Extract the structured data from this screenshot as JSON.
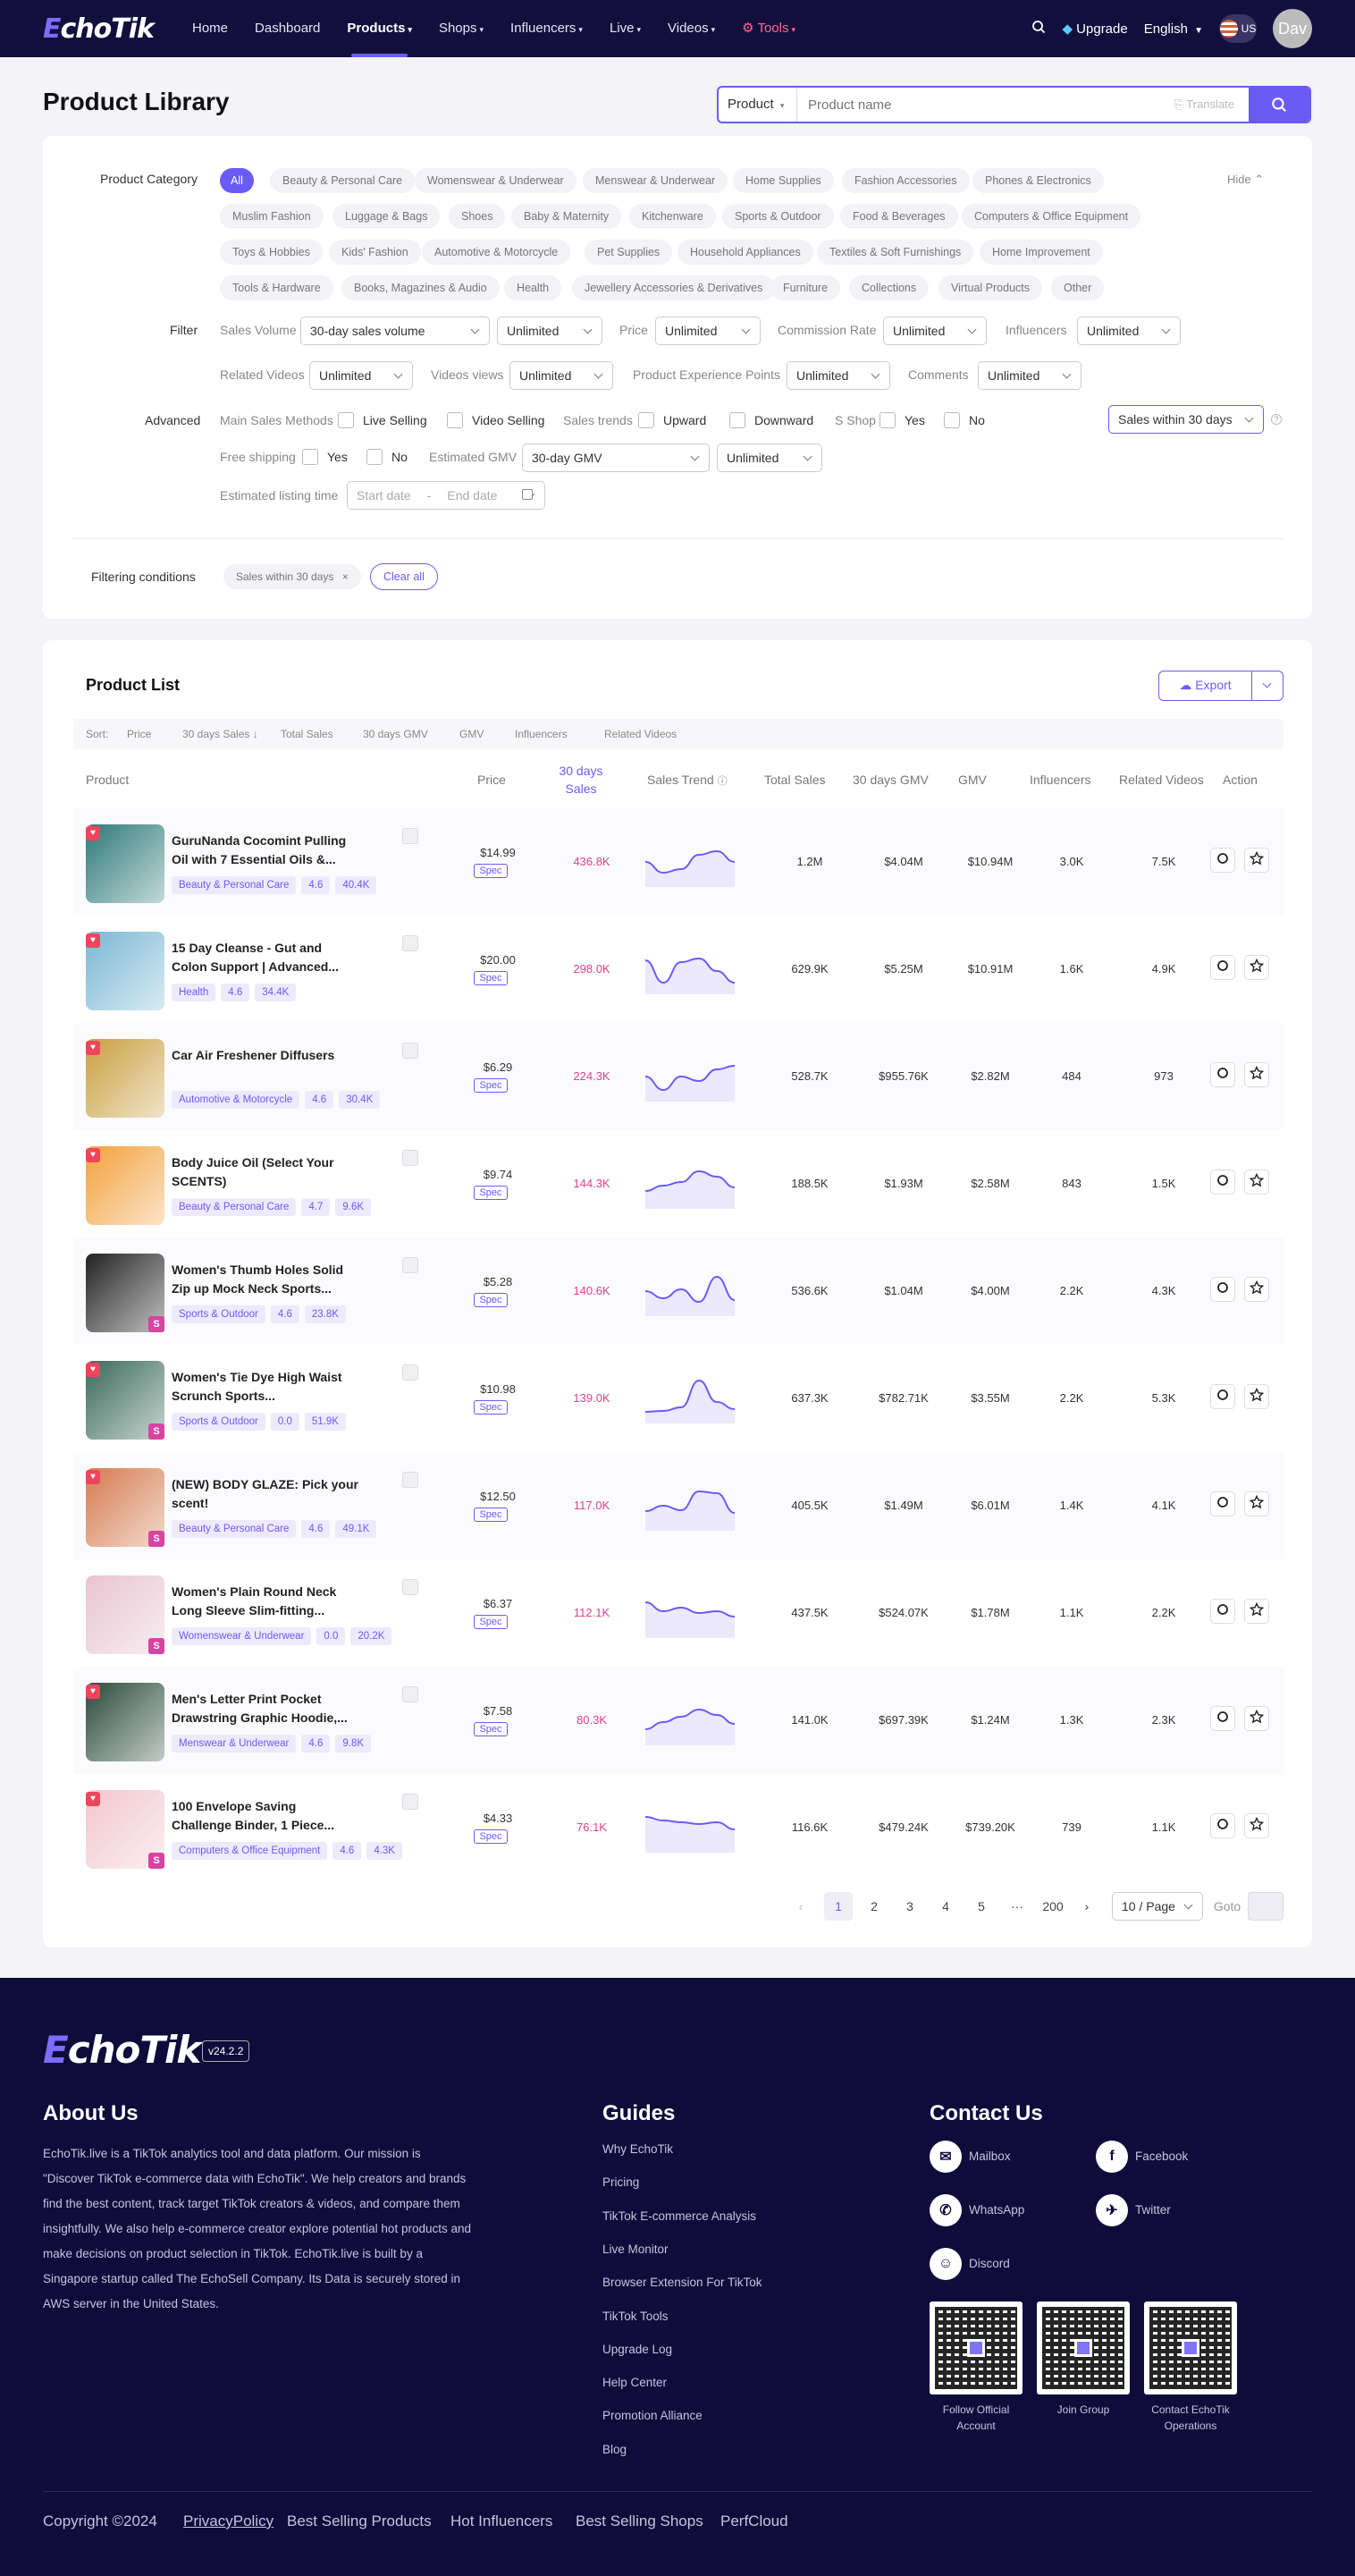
{
  "nav": {
    "items": [
      "Home",
      "Dashboard",
      "Products",
      "Shops",
      "Influencers",
      "Live",
      "Videos",
      "Tools"
    ],
    "upgrade": "Upgrade",
    "language": "English",
    "country": "US",
    "avatar": "Dav"
  },
  "page": {
    "title": "Product Library"
  },
  "search": {
    "type": "Product",
    "placeholder": "Product name",
    "translate": "Translate"
  },
  "category": {
    "label": "Product Category",
    "hide": "Hide",
    "items": [
      "All",
      "Beauty & Personal Care",
      "Womenswear & Underwear",
      "Menswear & Underwear",
      "Home Supplies",
      "Fashion Accessories",
      "Phones & Electronics",
      "Muslim Fashion",
      "Luggage & Bags",
      "Shoes",
      "Baby & Maternity",
      "Kitchenware",
      "Sports & Outdoor",
      "Food & Beverages",
      "Computers & Office Equipment",
      "Toys & Hobbies",
      "Kids' Fashion",
      "Automotive & Motorcycle",
      "Pet Supplies",
      "Household Appliances",
      "Textiles & Soft Furnishings",
      "Home Improvement",
      "Tools & Hardware",
      "Books, Magazines & Audio",
      "Health",
      "Jewellery Accessories & Derivatives",
      "Furniture",
      "Collections",
      "Virtual Products",
      "Other"
    ]
  },
  "filter": {
    "label": "Filter",
    "sales_volume": "Sales Volume",
    "sales_volume_val": "30-day sales volume",
    "unlimited": "Unlimited",
    "price": "Price",
    "commission": "Commission Rate",
    "influencers": "Influencers",
    "related_videos": "Related Videos",
    "video_views": "Videos views",
    "pep": "Product Experience Points",
    "comments": "Comments"
  },
  "advanced": {
    "label": "Advanced",
    "main_sales": "Main Sales Methods",
    "live": "Live Selling",
    "video": "Video Selling",
    "trends": "Sales trends",
    "upward": "Upward",
    "downward": "Downward",
    "sshop": "S Shop",
    "yes": "Yes",
    "no": "No",
    "sales_within": "Sales within 30 days",
    "free_shipping": "Free shipping",
    "est_gmv": "Estimated GMV",
    "gmv_val": "30-day GMV",
    "listing_time": "Estimated listing time",
    "start": "Start date",
    "dash": "-",
    "end": "End date"
  },
  "conditions": {
    "label": "Filtering conditions",
    "chip": "Sales within 30 days",
    "clear": "Clear all"
  },
  "list": {
    "title": "Product List",
    "export": "Export",
    "sort_label": "Sort:",
    "sort": [
      "Price",
      "30 days Sales",
      "Total Sales",
      "30 days GMV",
      "GMV",
      "Influencers",
      "Related Videos"
    ],
    "headers": {
      "product": "Product",
      "price": "Price",
      "sales30a": "30 days",
      "sales30b": "Sales",
      "trend": "Sales Trend",
      "total": "Total Sales",
      "gmv30": "30 days GMV",
      "gmv": "GMV",
      "infl": "Influencers",
      "videos": "Related Videos",
      "action": "Action"
    }
  },
  "products": [
    {
      "name": "GuruNanda Cocomint Pulling Oil with 7 Essential Oils &...",
      "cat": "Beauty & Personal Care",
      "rating": "4.6",
      "reviews": "40.4K",
      "price": "$14.99",
      "spec": "Spec",
      "sales30": "436.8K",
      "total": "1.2M",
      "gmv30": "$4.04M",
      "gmv": "$10.94M",
      "infl": "3.0K",
      "videos": "7.5K",
      "hot": true,
      "s": false,
      "trend": [
        30,
        42,
        38,
        22,
        18,
        30
      ]
    },
    {
      "name": "15 Day Cleanse - Gut and Colon Support | Advanced...",
      "cat": "Health",
      "rating": "4.6",
      "reviews": "34.4K",
      "price": "$20.00",
      "spec": "Spec",
      "sales30": "298.0K",
      "total": "629.9K",
      "gmv30": "$5.25M",
      "gmv": "$10.91M",
      "infl": "1.6K",
      "videos": "4.9K",
      "hot": true,
      "s": false,
      "trend": [
        20,
        45,
        22,
        18,
        32,
        45
      ]
    },
    {
      "name": "Car Air Freshener Diffusers",
      "cat": "Automotive & Motorcycle",
      "rating": "4.6",
      "reviews": "30.4K",
      "price": "$6.29",
      "spec": "Spec",
      "sales30": "224.3K",
      "total": "528.7K",
      "gmv30": "$955.76K",
      "gmv": "$2.82M",
      "infl": "484",
      "videos": "973",
      "hot": true,
      "s": false,
      "trend": [
        30,
        45,
        30,
        35,
        22,
        18
      ]
    },
    {
      "name": "Body Juice Oil (Select Your SCENTS)",
      "cat": "Beauty & Personal Care",
      "rating": "4.7",
      "reviews": "9.6K",
      "price": "$9.74",
      "spec": "Spec",
      "sales30": "144.3K",
      "total": "188.5K",
      "gmv30": "$1.93M",
      "gmv": "$2.58M",
      "infl": "843",
      "videos": "1.5K",
      "hot": true,
      "s": false,
      "trend": [
        38,
        32,
        28,
        16,
        22,
        34
      ]
    },
    {
      "name": "Women's Thumb Holes Solid Zip up Mock Neck Sports...",
      "cat": "Sports & Outdoor",
      "rating": "4.6",
      "reviews": "23.8K",
      "price": "$5.28",
      "spec": "Spec",
      "sales30": "140.6K",
      "total": "536.6K",
      "gmv30": "$1.04M",
      "gmv": "$4.00M",
      "infl": "2.2K",
      "videos": "4.3K",
      "hot": false,
      "s": true,
      "trend": [
        30,
        38,
        28,
        42,
        14,
        40
      ]
    },
    {
      "name": "Women's Tie Dye High Waist Scrunch Sports...",
      "cat": "Sports & Outdoor",
      "rating": "0.0",
      "reviews": "51.9K",
      "price": "$10.98",
      "spec": "Spec",
      "sales30": "139.0K",
      "total": "637.3K",
      "gmv30": "$782.71K",
      "gmv": "$3.55M",
      "infl": "2.2K",
      "videos": "5.3K",
      "hot": true,
      "s": true,
      "trend": [
        45,
        44,
        40,
        10,
        34,
        42
      ]
    },
    {
      "name": "(NEW) BODY GLAZE: Pick your scent!",
      "cat": "Beauty & Personal Care",
      "rating": "4.6",
      "reviews": "49.1K",
      "price": "$12.50",
      "spec": "Spec",
      "sales30": "117.0K",
      "total": "405.5K",
      "gmv30": "$1.49M",
      "gmv": "$6.01M",
      "infl": "1.4K",
      "videos": "4.1K",
      "hot": true,
      "s": true,
      "trend": [
        36,
        30,
        35,
        14,
        16,
        38
      ]
    },
    {
      "name": "Women's Plain Round Neck Long Sleeve Slim-fitting...",
      "cat": "Womenswear & Underwear",
      "rating": "0.0",
      "reviews": "20.2K",
      "price": "$6.37",
      "spec": "Spec",
      "sales30": "112.1K",
      "total": "437.5K",
      "gmv30": "$524.07K",
      "gmv": "$1.78M",
      "infl": "1.1K",
      "videos": "2.2K",
      "hot": false,
      "s": true,
      "trend": [
        18,
        28,
        24,
        30,
        28,
        34
      ]
    },
    {
      "name": "Men's Letter Print Pocket Drawstring Graphic Hoodie,...",
      "cat": "Menswear & Underwear",
      "rating": "4.6",
      "reviews": "9.8K",
      "price": "$7.58",
      "spec": "Spec",
      "sales30": "80.3K",
      "total": "141.0K",
      "gmv30": "$697.39K",
      "gmv": "$1.24M",
      "infl": "1.3K",
      "videos": "2.3K",
      "hot": true,
      "s": false,
      "trend": [
        40,
        32,
        26,
        18,
        24,
        34
      ]
    },
    {
      "name": "100 Envelope Saving Challenge Binder, 1 Piece...",
      "cat": "Computers & Office Equipment",
      "rating": "4.6",
      "reviews": "4.3K",
      "price": "$4.33",
      "spec": "Spec",
      "sales30": "76.1K",
      "total": "116.6K",
      "gmv30": "$479.24K",
      "gmv": "$739.20K",
      "infl": "739",
      "videos": "1.1K",
      "hot": true,
      "s": true,
      "trend": [
        18,
        22,
        24,
        26,
        24,
        32
      ]
    }
  ],
  "pagination": {
    "pages": [
      "1",
      "2",
      "3",
      "4",
      "5",
      "···",
      "200"
    ],
    "per_page": "10 / Page",
    "goto": "Goto"
  },
  "footer": {
    "version": "v24.2.2",
    "about_title": "About Us",
    "about": "EchoTik.live is a TikTok analytics tool and data platform. Our mission is \"Discover TikTok e-commerce data with EchoTik\". We help creators and brands find the best content, track target TikTok creators & videos, and compare them insightfully. We also help e-commerce creator explore potential hot products and make decisions on product selection in TikTok. EchoTik.live is built by a Singapore startup called The EchoSell Company. Its Data is securely stored in AWS server in the United States.",
    "guides_title": "Guides",
    "guides": [
      "Why EchoTik",
      "Pricing",
      "TikTok E-commerce Analysis",
      "Live Monitor",
      "Browser Extension For TikTok",
      "TikTok Tools",
      "Upgrade Log",
      "Help Center",
      "Promotion Alliance",
      "Blog"
    ],
    "contact_title": "Contact Us",
    "contacts": [
      "Mailbox",
      "Facebook",
      "WhatsApp",
      "Twitter",
      "Discord"
    ],
    "qr": [
      "Follow Official Account",
      "Join Group",
      "Contact EchoTik Operations"
    ],
    "copyright": "Copyright ©2024",
    "links": [
      "PrivacyPolicy",
      "Best Selling Products",
      "Hot Influencers",
      "Best Selling Shops",
      "PerfCloud"
    ]
  },
  "colors": {
    "accent": "#6b5bf5",
    "nav_bg": "#130f3d",
    "footer_bg": "#0f0b3b",
    "sales": "#e0428a"
  }
}
